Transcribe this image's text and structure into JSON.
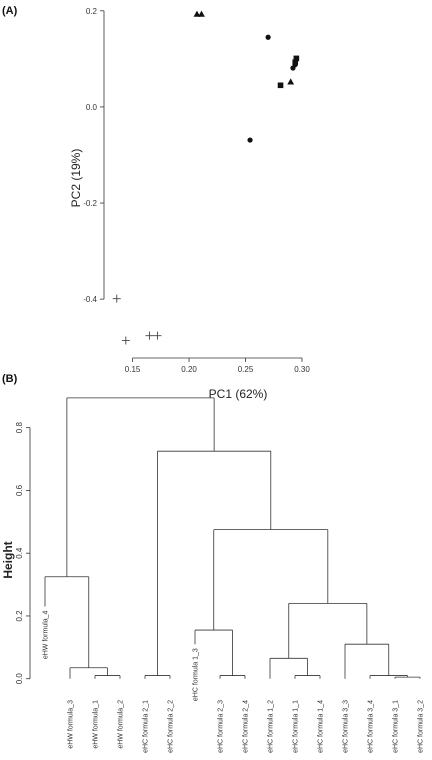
{
  "chart_data": [
    {
      "type": "scatter",
      "panel_label": "(A)",
      "xlabel": "PC1 (62%)",
      "ylabel": "PC2 (19%)",
      "xlim": [
        0.13,
        0.3
      ],
      "ylim": [
        -0.51,
        0.21
      ],
      "xticks": [
        0.15,
        0.2,
        0.25,
        0.3
      ],
      "xtick_labels": [
        "0.15",
        "0.20",
        "0.25",
        "0.30"
      ],
      "yticks": [
        -0.4,
        -0.2,
        0.0,
        0.2
      ],
      "ytick_labels": [
        "-0.4",
        "-0.2",
        "0.0",
        "0.2"
      ],
      "grid": false,
      "series": [
        {
          "marker": "triangle",
          "x": [
            0.207,
            0.211,
            0.29
          ],
          "y": [
            0.193,
            0.193,
            0.052
          ]
        },
        {
          "marker": "circle",
          "x": [
            0.27,
            0.254,
            0.292,
            0.294
          ],
          "y": [
            0.145,
            -0.069,
            0.081,
            0.088
          ]
        },
        {
          "marker": "square",
          "x": [
            0.281,
            0.295,
            0.294
          ],
          "y": [
            0.045,
            0.101,
            0.093
          ]
        },
        {
          "marker": "plus",
          "x": [
            0.136,
            0.144,
            0.165,
            0.172
          ],
          "y": [
            -0.399,
            -0.486,
            -0.476,
            -0.476
          ]
        }
      ]
    },
    {
      "type": "dendrogram",
      "panel_label": "(B)",
      "ylabel": "Height",
      "ylim": [
        -0.02,
        0.92
      ],
      "yticks": [
        0.0,
        0.2,
        0.4,
        0.6,
        0.8
      ],
      "ytick_labels": [
        "0.0",
        "0.2",
        "0.4",
        "0.6",
        "0.8"
      ],
      "leaves": [
        {
          "label": "eHW formula_4",
          "height": 0.23,
          "hanging": true
        },
        {
          "label": "eHW formula_3"
        },
        {
          "label": "eHW formula_1"
        },
        {
          "label": "eHW formula_2"
        },
        {
          "label": "eHC formula 2_1"
        },
        {
          "label": "eHC formula 2_2"
        },
        {
          "label": "eHC formula 1_3",
          "height": 0.11,
          "hanging": true
        },
        {
          "label": "eHC formula 2_3"
        },
        {
          "label": "eHC formula 2_4"
        },
        {
          "label": "eHC formula 1_2"
        },
        {
          "label": "eHC formula 1_1"
        },
        {
          "label": "eHC formula 1_4"
        },
        {
          "label": "eHC formula 3_3"
        },
        {
          "label": "eHC formula 3_4"
        },
        {
          "label": "eHC formula 3_1"
        },
        {
          "label": "eHC formula 3_2"
        }
      ],
      "merges": [
        {
          "children": [
            2,
            3
          ],
          "height": 0.01
        },
        {
          "children": [
            14,
            15
          ],
          "height": 0.005
        },
        {
          "children": [
            4,
            5
          ],
          "height": 0.01
        },
        {
          "children": [
            7,
            8
          ],
          "height": 0.01
        },
        {
          "children": [
            10,
            11
          ],
          "height": 0.01
        },
        {
          "children": [
            13,
            "m1"
          ],
          "height": 0.01
        },
        {
          "children": [
            1,
            "m0"
          ],
          "height": 0.035
        },
        {
          "children": [
            9,
            "m4"
          ],
          "height": 0.065
        },
        {
          "children": [
            12,
            "m5"
          ],
          "height": 0.11
        },
        {
          "children": [
            6,
            "m3"
          ],
          "height": 0.155
        },
        {
          "children": [
            "m7",
            "m8"
          ],
          "height": 0.24
        },
        {
          "children": [
            0,
            "m6"
          ],
          "height": 0.325
        },
        {
          "children": [
            "m9",
            "m10"
          ],
          "height": 0.475
        },
        {
          "children": [
            "m2",
            "m12"
          ],
          "height": 0.725
        },
        {
          "children": [
            "m11",
            "m13"
          ],
          "height": 0.895
        }
      ]
    }
  ]
}
